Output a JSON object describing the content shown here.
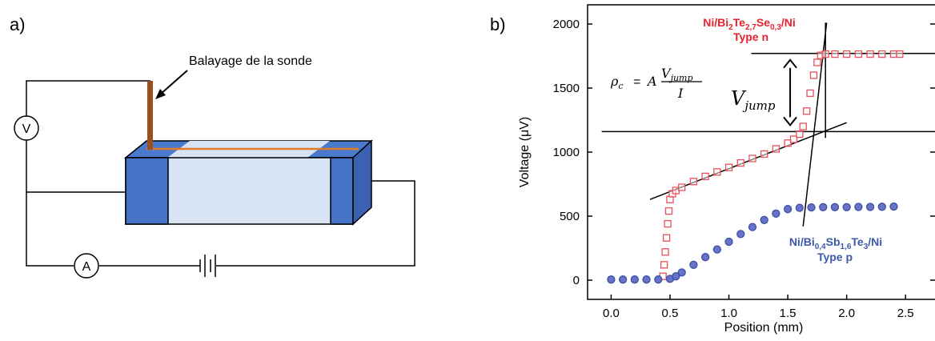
{
  "panel_a": {
    "label": "a)",
    "probe_label": "Balayage de la sonde",
    "voltmeter": "V",
    "ammeter": "A"
  },
  "panel_b": {
    "label": "b)",
    "formula": {
      "lhs": "ρ",
      "lhs_sub": "c",
      "eq": "=",
      "A": "A",
      "num": "V",
      "num_sub": "jump",
      "den": "I"
    },
    "vjump": {
      "main": "V",
      "sub": "jump"
    },
    "series_n": {
      "name_parts": [
        "Ni/Bi",
        "2",
        "Te",
        "2,7",
        "Se",
        "0,3",
        "/Ni"
      ],
      "type_label": "Type n"
    },
    "series_p": {
      "name_parts": [
        "Ni/Bi",
        "0,4",
        "Sb",
        "1,6",
        "Te",
        "3",
        "/Ni"
      ],
      "type_label": "Type p"
    }
  },
  "chart_data": {
    "type": "scatter",
    "xlabel": "Position (mm)",
    "ylabel": "Voltage (μV)",
    "xlim": [
      -0.2,
      2.75
    ],
    "ylim": [
      -150,
      2150
    ],
    "xticks": [
      0.0,
      0.5,
      1.0,
      1.5,
      2.0,
      2.5
    ],
    "xtick_labels": [
      "0.0",
      "0.5",
      "1.0",
      "1.5",
      "2.0",
      "2.5"
    ],
    "yticks": [
      0,
      500,
      1000,
      1500,
      2000
    ],
    "ytick_labels": [
      "0",
      "500",
      "1000",
      "1500",
      "2000"
    ],
    "series": [
      {
        "color": "#e8505b",
        "marker": "square",
        "points": [
          [
            0.44,
            30
          ],
          [
            0.45,
            120
          ],
          [
            0.46,
            220
          ],
          [
            0.47,
            330
          ],
          [
            0.48,
            440
          ],
          [
            0.49,
            540
          ],
          [
            0.5,
            630
          ],
          [
            0.52,
            675
          ],
          [
            0.55,
            700
          ],
          [
            0.6,
            725
          ],
          [
            0.7,
            770
          ],
          [
            0.8,
            810
          ],
          [
            0.9,
            845
          ],
          [
            1.0,
            880
          ],
          [
            1.1,
            915
          ],
          [
            1.2,
            950
          ],
          [
            1.3,
            985
          ],
          [
            1.4,
            1025
          ],
          [
            1.5,
            1070
          ],
          [
            1.55,
            1100
          ],
          [
            1.6,
            1140
          ],
          [
            1.63,
            1200
          ],
          [
            1.66,
            1320
          ],
          [
            1.69,
            1460
          ],
          [
            1.72,
            1600
          ],
          [
            1.75,
            1700
          ],
          [
            1.78,
            1755
          ],
          [
            1.82,
            1765
          ],
          [
            1.9,
            1765
          ],
          [
            2.0,
            1765
          ],
          [
            2.1,
            1765
          ],
          [
            2.2,
            1765
          ],
          [
            2.3,
            1765
          ],
          [
            2.4,
            1765
          ],
          [
            2.45,
            1765
          ]
        ]
      },
      {
        "color": "#3f4ea3",
        "marker": "circle",
        "points": [
          [
            0.0,
            5
          ],
          [
            0.1,
            5
          ],
          [
            0.2,
            5
          ],
          [
            0.3,
            5
          ],
          [
            0.4,
            5
          ],
          [
            0.5,
            10
          ],
          [
            0.55,
            30
          ],
          [
            0.6,
            60
          ],
          [
            0.7,
            120
          ],
          [
            0.8,
            180
          ],
          [
            0.9,
            240
          ],
          [
            1.0,
            300
          ],
          [
            1.1,
            360
          ],
          [
            1.2,
            415
          ],
          [
            1.3,
            470
          ],
          [
            1.4,
            520
          ],
          [
            1.5,
            555
          ],
          [
            1.6,
            565
          ],
          [
            1.7,
            568
          ],
          [
            1.8,
            570
          ],
          [
            1.9,
            570
          ],
          [
            2.0,
            570
          ],
          [
            2.1,
            572
          ],
          [
            2.2,
            572
          ],
          [
            2.3,
            573
          ],
          [
            2.4,
            575
          ]
        ]
      }
    ],
    "annotations": {
      "upper_hline_y": 1770,
      "lower_hline_y": 1160,
      "fit_line_low": [
        [
          0.33,
          630
        ],
        [
          2.0,
          1230
        ]
      ],
      "fit_line_high": [
        [
          1.63,
          420
        ],
        [
          1.83,
          2010
        ]
      ],
      "vertical_marker_x": 1.82,
      "jump_arrow_x": 1.52
    }
  }
}
